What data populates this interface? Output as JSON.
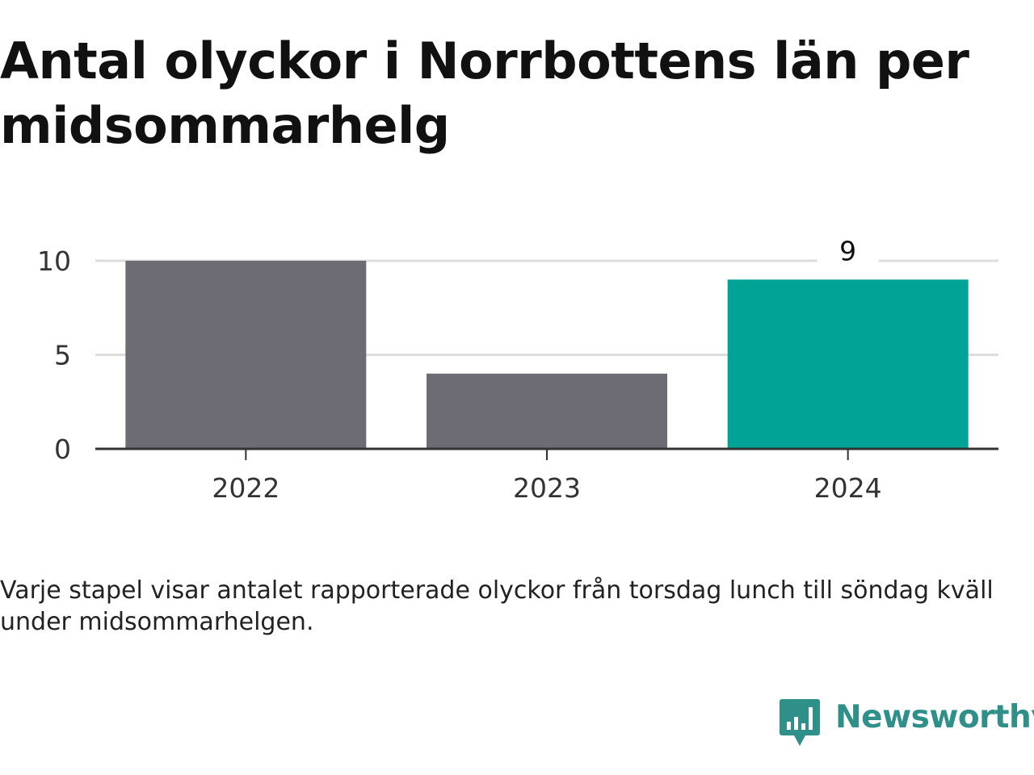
{
  "title": "Antal olyckor i Norrbottens län per midsommarhelg",
  "caption": "Varje stapel visar antalet rapporterade olyckor från torsdag lunch till söndag kväll under midsommarhelgen.",
  "brand": {
    "name": "Newsworthy",
    "color": "#2f8f89"
  },
  "colors": {
    "bar_default": "#6d6c74",
    "bar_highlight": "#00a396",
    "grid": "#dddddd",
    "axis": "#333333",
    "tick_text": "#333333"
  },
  "chart_data": {
    "type": "bar",
    "title": "Antal olyckor i Norrbottens län per midsommarhelg",
    "xlabel": "",
    "ylabel": "",
    "categories": [
      "2022",
      "2023",
      "2024"
    ],
    "values": [
      10,
      4,
      9
    ],
    "highlight_index": 2,
    "data_labels": [
      "",
      "",
      "9"
    ],
    "ylim": [
      0,
      10
    ],
    "yticks": [
      0,
      5,
      10
    ],
    "grid": true,
    "legend": "none"
  }
}
